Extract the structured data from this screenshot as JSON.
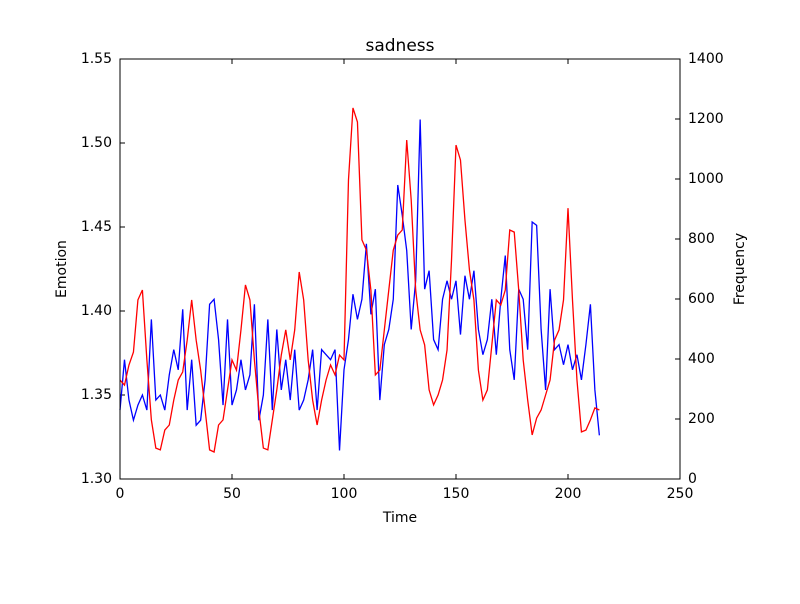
{
  "chart_data": {
    "type": "line",
    "title": "sadness",
    "x_label": "Time",
    "y_label": "Emotion",
    "y2_label": "Frequency",
    "x": [
      0,
      2,
      4,
      6,
      8,
      10,
      12,
      14,
      16,
      18,
      20,
      22,
      24,
      26,
      28,
      30,
      32,
      34,
      36,
      38,
      40,
      42,
      44,
      46,
      48,
      50,
      52,
      54,
      56,
      58,
      60,
      62,
      64,
      66,
      68,
      70,
      72,
      74,
      76,
      78,
      80,
      82,
      84,
      86,
      88,
      90,
      92,
      94,
      96,
      98,
      100,
      102,
      104,
      106,
      108,
      110,
      112,
      114,
      116,
      118,
      120,
      122,
      124,
      126,
      128,
      130,
      132,
      134,
      136,
      138,
      140,
      142,
      144,
      146,
      148,
      150,
      152,
      154,
      156,
      158,
      160,
      162,
      164,
      166,
      168,
      170,
      172,
      174,
      176,
      178,
      180,
      182,
      184,
      186,
      188,
      190,
      192,
      194,
      196,
      198,
      200,
      202,
      204,
      206,
      208,
      210,
      212,
      214
    ],
    "series": [
      {
        "color": "#0000ff",
        "axis": "y",
        "values": [
          1.341,
          1.371,
          1.347,
          1.335,
          1.344,
          1.35,
          1.341,
          1.395,
          1.347,
          1.35,
          1.341,
          1.362,
          1.377,
          1.365,
          1.401,
          1.341,
          1.371,
          1.332,
          1.335,
          1.359,
          1.404,
          1.407,
          1.383,
          1.344,
          1.395,
          1.344,
          1.353,
          1.371,
          1.353,
          1.362,
          1.404,
          1.335,
          1.35,
          1.395,
          1.341,
          1.389,
          1.353,
          1.371,
          1.347,
          1.377,
          1.341,
          1.347,
          1.359,
          1.377,
          1.341,
          1.377,
          1.374,
          1.371,
          1.377,
          1.317,
          1.365,
          1.383,
          1.41,
          1.395,
          1.407,
          1.44,
          1.398,
          1.413,
          1.347,
          1.38,
          1.389,
          1.407,
          1.475,
          1.457,
          1.436,
          1.389,
          1.418,
          1.514,
          1.413,
          1.424,
          1.383,
          1.377,
          1.407,
          1.418,
          1.407,
          1.418,
          1.386,
          1.421,
          1.407,
          1.424,
          1.389,
          1.374,
          1.383,
          1.407,
          1.374,
          1.407,
          1.433,
          1.377,
          1.359,
          1.413,
          1.407,
          1.377,
          1.453,
          1.451,
          1.389,
          1.353,
          1.413,
          1.377,
          1.38,
          1.368,
          1.38,
          1.365,
          1.374,
          1.359,
          1.38,
          1.404,
          1.353,
          1.326
        ]
      },
      {
        "color": "#ff0000",
        "axis": "y2",
        "values": [
          330,
          313,
          380,
          423,
          597,
          630,
          397,
          197,
          103,
          97,
          163,
          180,
          263,
          330,
          357,
          463,
          597,
          463,
          363,
          230,
          97,
          90,
          180,
          197,
          297,
          397,
          363,
          497,
          647,
          597,
          397,
          230,
          103,
          97,
          197,
          297,
          413,
          497,
          397,
          497,
          690,
          597,
          397,
          263,
          180,
          263,
          330,
          380,
          347,
          413,
          397,
          997,
          1237,
          1190,
          797,
          763,
          630,
          347,
          363,
          497,
          630,
          763,
          813,
          830,
          1130,
          930,
          630,
          497,
          447,
          297,
          247,
          280,
          330,
          430,
          730,
          1113,
          1063,
          863,
          697,
          597,
          363,
          263,
          297,
          447,
          597,
          580,
          630,
          830,
          823,
          630,
          397,
          263,
          147,
          203,
          230,
          280,
          330,
          463,
          497,
          597,
          903,
          597,
          330,
          157,
          163,
          197,
          237,
          230
        ]
      }
    ],
    "xlim": [
      0,
      250
    ],
    "xticks": [
      0,
      50,
      100,
      150,
      200,
      250
    ],
    "ylim": [
      1.3,
      1.55
    ],
    "yticks": [
      {
        "value": 1.3,
        "label": "1.30"
      },
      1.35,
      {
        "value": 1.4,
        "label": "1.40"
      },
      1.45,
      {
        "value": 1.5,
        "label": "1.50"
      },
      1.55
    ],
    "y2lim": [
      0,
      1400
    ],
    "y2ticks": [
      0,
      200,
      400,
      600,
      800,
      1000,
      1200,
      1400
    ]
  }
}
